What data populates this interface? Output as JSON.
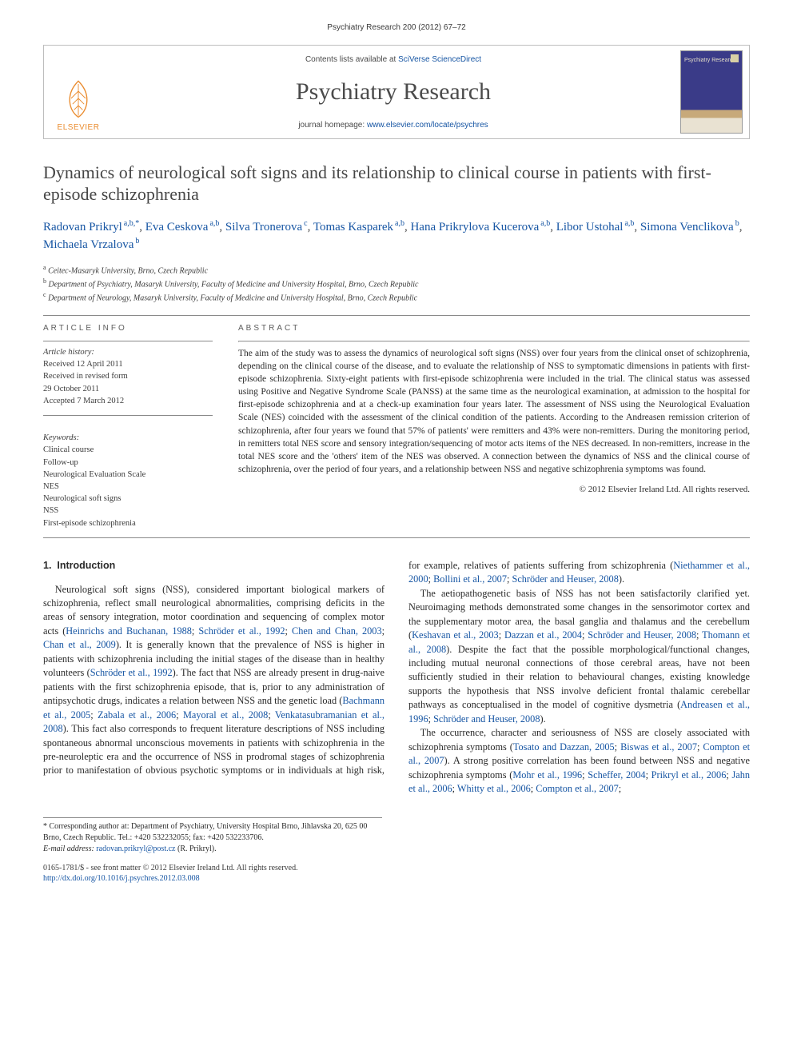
{
  "running_head": "Psychiatry Research 200 (2012) 67–72",
  "banner": {
    "contents_prefix": "Contents lists available at ",
    "contents_link": "SciVerse ScienceDirect",
    "journal": "Psychiatry Research",
    "homepage_prefix": "journal homepage: ",
    "homepage_url": "www.elsevier.com/locate/psychres",
    "publisher_logo_text": "ELSEVIER",
    "cover_label": "Psychiatry Research"
  },
  "title": "Dynamics of neurological soft signs and its relationship to clinical course in patients with first-episode schizophrenia",
  "authors_html": [
    {
      "name": "Radovan Prikryl",
      "aff": "a,b,",
      "corr": true
    },
    {
      "name": "Eva Ceskova",
      "aff": "a,b"
    },
    {
      "name": "Silva Tronerova",
      "aff": "c"
    },
    {
      "name": "Tomas Kasparek",
      "aff": "a,b"
    },
    {
      "name": "Hana Prikrylova Kucerova",
      "aff": "a,b"
    },
    {
      "name": "Libor Ustohal",
      "aff": "a,b"
    },
    {
      "name": "Simona Venclikova",
      "aff": "b"
    },
    {
      "name": "Michaela Vrzalova",
      "aff": "b"
    }
  ],
  "affiliations": {
    "a": "Ceitec-Masaryk University, Brno, Czech Republic",
    "b": "Department of Psychiatry, Masaryk University, Faculty of Medicine and University Hospital, Brno, Czech Republic",
    "c": "Department of Neurology, Masaryk University, Faculty of Medicine and University Hospital, Brno, Czech Republic"
  },
  "article_info": {
    "heading": "ARTICLE INFO",
    "history_label": "Article history:",
    "received": "Received 12 April 2011",
    "revised": "Received in revised form",
    "revised_date": "29 October 2011",
    "accepted": "Accepted 7 March 2012",
    "keywords_label": "Keywords:",
    "keywords": [
      "Clinical course",
      "Follow-up",
      "Neurological Evaluation Scale",
      "NES",
      "Neurological soft signs",
      "NSS",
      "First-episode schizophrenia"
    ]
  },
  "abstract": {
    "heading": "ABSTRACT",
    "text": "The aim of the study was to assess the dynamics of neurological soft signs (NSS) over four years from the clinical onset of schizophrenia, depending on the clinical course of the disease, and to evaluate the relationship of NSS to symptomatic dimensions in patients with first-episode schizophrenia. Sixty-eight patients with first-episode schizophrenia were included in the trial. The clinical status was assessed using Positive and Negative Syndrome Scale (PANSS) at the same time as the neurological examination, at admission to the hospital for first-episode schizophrenia and at a check-up examination four years later. The assessment of NSS using the Neurological Evaluation Scale (NES) coincided with the assessment of the clinical condition of the patients. According to the Andreasen remission criterion of schizophrenia, after four years we found that 57% of patients' were remitters and 43% were non-remitters. During the monitoring period, in remitters total NES score and sensory integration/sequencing of motor acts items of the NES decreased. In non-remitters, increase in the total NES score and the 'others' item of the NES was observed. A connection between the dynamics of NSS and the clinical course of schizophrenia, over the period of four years, and a relationship between NSS and negative schizophrenia symptoms was found.",
    "copyright": "© 2012 Elsevier Ireland Ltd. All rights reserved."
  },
  "body": {
    "section_number": "1.",
    "section_title": "Introduction",
    "p1a": "Neurological soft signs (NSS), considered important biological markers of schizophrenia, reflect small neurological abnormalities, comprising deficits in the areas of sensory integration, motor coordination and sequencing of complex motor acts (",
    "c1": "Heinrichs and Buchanan, 1988",
    "p1b": "; ",
    "c2": "Schröder et al., 1992",
    "p1c": "; ",
    "c3": "Chen and Chan, 2003",
    "p1d": "; ",
    "c4": "Chan et al., 2009",
    "p1e": "). It is generally known that the prevalence of NSS is higher in patients with schizophrenia including the initial stages of the disease than in healthy volunteers (",
    "c5": "Schröder et al., 1992",
    "p1f": "). The fact that NSS are already present in drug-naive patients with the first schizophrenia episode, that is, prior to any administration of antipsychotic drugs, indicates a relation between NSS and the genetic load (",
    "c6": "Bachmann et al., 2005",
    "p1g": "; ",
    "c7": "Zabala et al., 2006",
    "p1h": "; ",
    "c8": "Mayoral et al., 2008",
    "p1i": "; ",
    "c9": "Venkatasubramanian et al., 2008",
    "p1j": "). This fact also corresponds to frequent literature descriptions of NSS including spontaneous abnormal unconscious movements in patients with schizophrenia in the pre-neuroleptic era ",
    "p2a": "and the occurrence of NSS in prodromal stages of schizophrenia prior to manifestation of obvious psychotic symptoms or in individuals at high risk, for example, relatives of patients suffering from schizophrenia (",
    "c10": "Niethammer et al., 2000",
    "p2b": "; ",
    "c11": "Bollini et al., 2007",
    "p2c": "; ",
    "c12": "Schröder and Heuser, 2008",
    "p2d": ").",
    "p3a": "The aetiopathogenetic basis of NSS has not been satisfactorily clarified yet. Neuroimaging methods demonstrated some changes in the sensorimotor cortex and the supplementary motor area, the basal ganglia and thalamus and the cerebellum (",
    "c13": "Keshavan et al., 2003",
    "p3b": "; ",
    "c14": "Dazzan et al., 2004",
    "p3c": "; ",
    "c15": "Schröder and Heuser, 2008",
    "p3d": "; ",
    "c16": "Thomann et al., 2008",
    "p3e": "). Despite the fact that the possible morphological/functional changes, including mutual neuronal connections of those cerebral areas, have not been sufficiently studied in their relation to behavioural changes, existing knowledge supports the hypothesis that NSS involve deficient frontal thalamic cerebellar pathways as conceptualised in the model of cognitive dysmetria (",
    "c17": "Andreasen et al., 1996",
    "p3f": "; ",
    "c18": "Schröder and Heuser, 2008",
    "p3g": ").",
    "p4a": "The occurrence, character and seriousness of NSS are closely associated with schizophrenia symptoms (",
    "c19": "Tosato and Dazzan, 2005",
    "p4b": "; ",
    "c20": "Biswas et al., 2007",
    "p4c": "; ",
    "c21": "Compton et al., 2007",
    "p4d": "). A strong positive correlation has been found between NSS and negative schizophrenia symptoms (",
    "c22": "Mohr et al., 1996",
    "p4e": "; ",
    "c23": "Scheffer, 2004",
    "p4f": "; ",
    "c24": "Prikryl et al., 2006",
    "p4g": "; ",
    "c25": "Jahn et al., 2006",
    "p4h": "; ",
    "c26": "Whitty et al., 2006",
    "p4i": "; ",
    "c27": "Compton et al., 2007",
    "p4j": "; "
  },
  "footnotes": {
    "corr_label": "* Corresponding author at: Department of Psychiatry, University Hospital Brno, Jihlavska 20, 625 00 Brno, Czech Republic. Tel.: +420 532232055; fax: +420 532233706.",
    "email_label": "E-mail address:",
    "email": "radovan.prikryl@post.cz",
    "email_who": " (R. Prikryl)."
  },
  "bottom": {
    "issn_line": "0165-1781/$ - see front matter © 2012 Elsevier Ireland Ltd. All rights reserved.",
    "doi_url": "http://dx.doi.org/10.1016/j.psychres.2012.03.008"
  }
}
